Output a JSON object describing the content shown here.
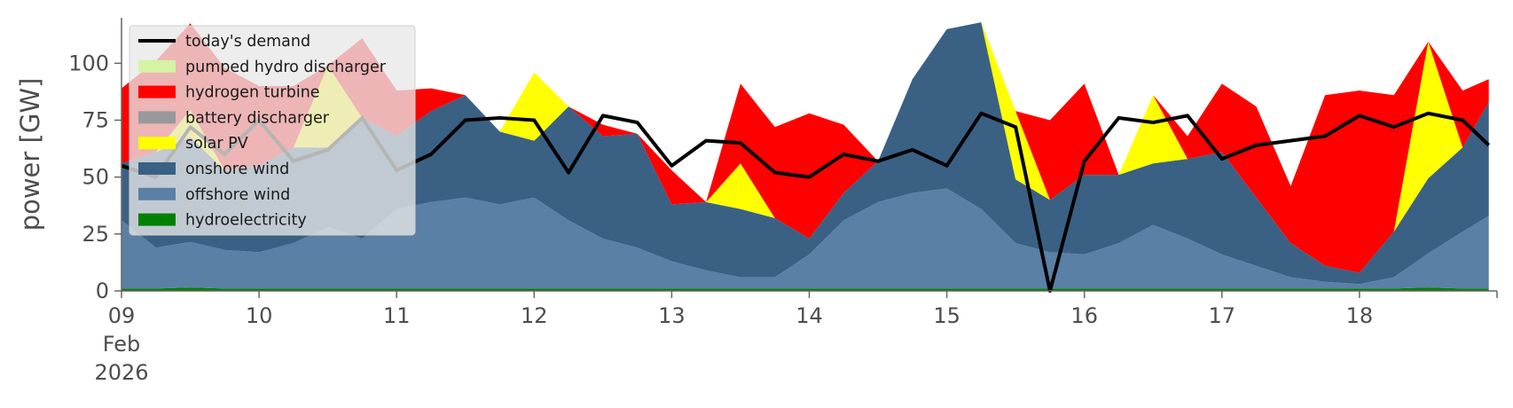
{
  "chart_data": {
    "type": "area",
    "stacked": true,
    "ylabel": "power [GW]",
    "ylim": [
      0,
      120
    ],
    "y_ticks": [
      0,
      25,
      50,
      75,
      100
    ],
    "x_range_days": [
      "2026-02-09",
      "2026-02-19"
    ],
    "x_ticks": [
      {
        "date": "2026-02-09",
        "label": "09",
        "sub": [
          "Feb",
          "2026"
        ]
      },
      {
        "date": "2026-02-10",
        "label": "10"
      },
      {
        "date": "2026-02-11",
        "label": "11"
      },
      {
        "date": "2026-02-12",
        "label": "12"
      },
      {
        "date": "2026-02-13",
        "label": "13"
      },
      {
        "date": "2026-02-14",
        "label": "14"
      },
      {
        "date": "2026-02-15",
        "label": "15"
      },
      {
        "date": "2026-02-16",
        "label": "16"
      },
      {
        "date": "2026-02-17",
        "label": "17"
      },
      {
        "date": "2026-02-18",
        "label": "18"
      }
    ],
    "grid": false,
    "legend_position": "upper-left",
    "x_days": [
      0.0,
      0.25,
      0.5,
      0.75,
      1.0,
      1.25,
      1.5,
      1.75,
      2.0,
      2.25,
      2.5,
      2.75,
      3.0,
      3.25,
      3.5,
      3.75,
      4.0,
      4.25,
      4.5,
      4.75,
      5.0,
      5.25,
      5.5,
      5.75,
      6.0,
      6.25,
      6.5,
      6.75,
      7.0,
      7.25,
      7.5,
      7.75,
      8.0,
      8.25,
      8.5,
      8.75,
      9.0,
      9.25,
      9.5,
      9.75,
      9.94
    ],
    "series": [
      {
        "name": "hydroelectricity",
        "color": "#008000",
        "values": [
          1,
          1,
          1.5,
          1,
          1,
          1,
          1,
          1,
          1,
          1,
          1,
          1,
          1,
          1,
          1,
          1,
          1,
          1,
          1,
          1,
          1,
          1,
          1,
          1,
          1,
          1,
          1,
          1,
          1,
          1,
          1,
          1,
          1,
          1,
          1,
          1,
          1,
          1,
          1.5,
          1,
          1
        ]
      },
      {
        "name": "offshore wind",
        "color": "#5b80a5",
        "values": [
          30,
          18,
          20,
          17,
          16,
          20,
          27,
          22,
          35,
          38,
          40,
          37,
          40,
          30,
          22,
          18,
          12,
          8,
          5,
          5,
          15,
          30,
          38,
          42,
          44,
          35,
          20,
          16,
          15,
          20,
          28,
          22,
          15,
          10,
          5,
          3,
          2,
          5,
          15,
          25,
          32
        ]
      },
      {
        "name": "onshore wind",
        "color": "#3a6184",
        "values": [
          25,
          42,
          46,
          35,
          38,
          42,
          35,
          53,
          32,
          40,
          45,
          32,
          25,
          50,
          45,
          50,
          25,
          30,
          30,
          26,
          7,
          12,
          18,
          50,
          70,
          82,
          28,
          23,
          35,
          30,
          27,
          35,
          45,
          30,
          15,
          7,
          5,
          20,
          33,
          37,
          50
        ]
      },
      {
        "name": "solar PV",
        "color": "#ffff00",
        "values": [
          0,
          0,
          12,
          0,
          0,
          0,
          36,
          0,
          0,
          0,
          0,
          0,
          30,
          0,
          0,
          0,
          0,
          0,
          20,
          0,
          0,
          0,
          0,
          0,
          0,
          0,
          30,
          0,
          0,
          0,
          30,
          0,
          0,
          0,
          0,
          0,
          0,
          0,
          60,
          0,
          0
        ]
      },
      {
        "name": "battery discharger",
        "color": "#999999",
        "values": [
          0,
          0,
          0,
          0,
          0,
          0,
          0,
          0,
          0,
          0,
          0,
          0,
          0,
          0,
          0,
          0,
          0,
          0,
          0,
          0,
          0,
          0,
          0,
          0,
          0,
          0,
          0,
          0,
          0,
          0,
          0,
          0,
          0,
          0,
          0,
          0,
          0,
          0,
          0,
          0,
          0
        ]
      },
      {
        "name": "hydrogen turbine",
        "color": "#ff0000",
        "values": [
          33,
          40,
          38,
          45,
          35,
          27,
          0,
          35,
          20,
          10,
          0,
          0,
          0,
          0,
          5,
          0,
          15,
          0,
          35,
          40,
          55,
          30,
          0,
          0,
          0,
          0,
          0,
          35,
          40,
          0,
          0,
          10,
          30,
          40,
          25,
          75,
          80,
          60,
          0,
          25,
          10
        ]
      },
      {
        "name": "pumped hydro discharger",
        "color": "#d4f3a5",
        "values": [
          0,
          0,
          0,
          0,
          0,
          0,
          0,
          0,
          0,
          0,
          0,
          0,
          0,
          0,
          0,
          0,
          0,
          0,
          0,
          0,
          0,
          0,
          0,
          0,
          0,
          0,
          0,
          0,
          0,
          0,
          0,
          0,
          0,
          0,
          0,
          0,
          0,
          0,
          0,
          0,
          0
        ]
      },
      {
        "name": "today's demand",
        "color": "#000000",
        "type": "line",
        "values": [
          55,
          50,
          72,
          60,
          75,
          57,
          62,
          76,
          53,
          60,
          75,
          76,
          75,
          52,
          77,
          74,
          55,
          66,
          65,
          52,
          50,
          60,
          57,
          62,
          55,
          78,
          72,
          0,
          57,
          76,
          74,
          77,
          58,
          64,
          66,
          68,
          77,
          72,
          78,
          75,
          64
        ]
      }
    ]
  }
}
